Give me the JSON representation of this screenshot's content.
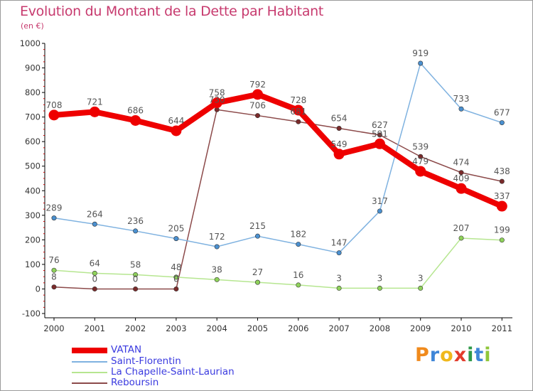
{
  "chart_data": {
    "type": "line",
    "title": "Evolution du Montant de la Dette par Habitant",
    "subtitle": "(en €)",
    "xlabel": "",
    "ylabel": "",
    "x": [
      "2000",
      "2001",
      "2002",
      "2003",
      "2004",
      "2005",
      "2006",
      "2007",
      "2008",
      "2009",
      "2010",
      "2011"
    ],
    "ylim": [
      -100,
      1000
    ],
    "yticks": [
      -100,
      0,
      100,
      200,
      300,
      400,
      500,
      600,
      700,
      800,
      900,
      1000
    ],
    "grid": false,
    "legend_position": "bottom-left",
    "series": [
      {
        "name": "Reboursin",
        "color": "#7a2a2a",
        "line_color": "#8c4a4a",
        "values": [
          8,
          0,
          0,
          0,
          730,
          706,
          681,
          654,
          627,
          539,
          474,
          438
        ],
        "labels": [
          "8",
          "0",
          "0",
          "0",
          "730",
          "706",
          "681",
          "654",
          "627",
          "539",
          "474",
          "438"
        ]
      },
      {
        "name": "La Chapelle-Saint-Laurian",
        "color": "#8fd25a",
        "line_color": "#b6e690",
        "values": [
          76,
          64,
          58,
          48,
          38,
          27,
          16,
          3,
          3,
          3,
          207,
          199
        ],
        "labels": [
          "76",
          "64",
          "58",
          "48",
          "38",
          "27",
          "16",
          "3",
          "3",
          "3",
          "207",
          "199"
        ]
      },
      {
        "name": "Saint-Florentin",
        "color": "#4a90d0",
        "line_color": "#7fb2e0",
        "values": [
          289,
          264,
          236,
          205,
          172,
          215,
          182,
          147,
          317,
          919,
          733,
          677
        ],
        "labels": [
          "289",
          "264",
          "236",
          "205",
          "172",
          "215",
          "182",
          "147",
          "317",
          "919",
          "733",
          "677"
        ]
      },
      {
        "name": "VATAN",
        "color": "#ee0000",
        "line_color": "#ee0000",
        "values": [
          708,
          721,
          686,
          644,
          758,
          792,
          728,
          549,
          591,
          479,
          409,
          337
        ],
        "labels": [
          "708",
          "721",
          "686",
          "644",
          "758",
          "792",
          "728",
          "549",
          "591",
          "479",
          "409",
          "337"
        ]
      }
    ],
    "legend": [
      {
        "name": "VATAN",
        "color": "#ee0000",
        "thickness": "thick"
      },
      {
        "name": "Saint-Florentin",
        "color": "#7fb2e0",
        "thickness": "thin"
      },
      {
        "name": "La Chapelle-Saint-Laurian",
        "color": "#b6e690",
        "thickness": "thin"
      },
      {
        "name": "Reboursin",
        "color": "#8c4a4a",
        "thickness": "thin"
      }
    ]
  },
  "branding": {
    "logo_text": "Proxiti",
    "logo_letters": [
      {
        "ch": "P",
        "color": "#f08a1c"
      },
      {
        "ch": "r",
        "color": "#3f86d8"
      },
      {
        "ch": "o",
        "color": "#f0b81c"
      },
      {
        "ch": "x",
        "color": "#e23c2c"
      },
      {
        "ch": "i",
        "color": "#2f9a4a"
      },
      {
        "ch": "t",
        "color": "#3f86d8"
      },
      {
        "ch": "i",
        "color": "#8fc63a"
      }
    ]
  }
}
